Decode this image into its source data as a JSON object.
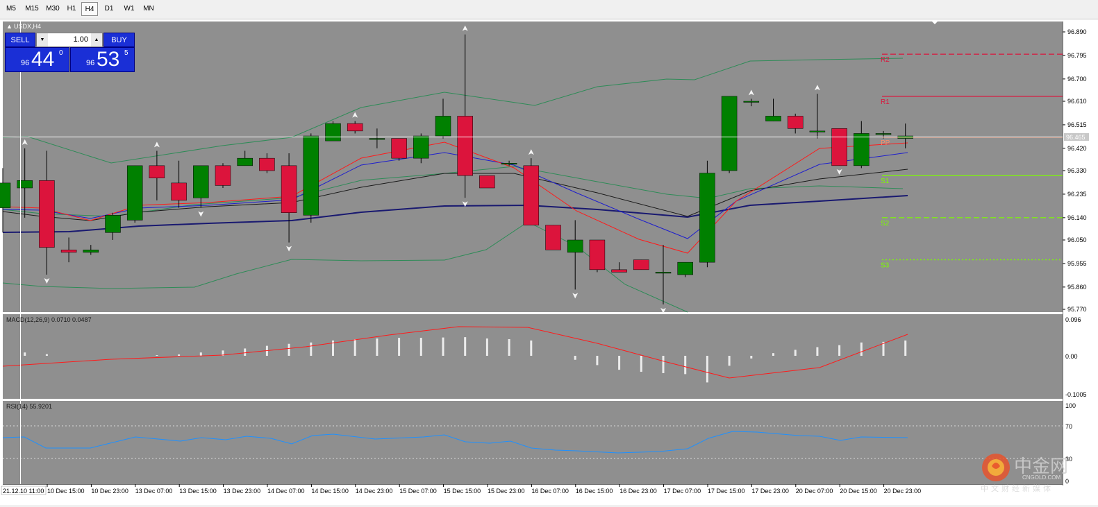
{
  "timeframes": [
    "M5",
    "M15",
    "M30",
    "H1",
    "H4",
    "D1",
    "W1",
    "MN"
  ],
  "active_timeframe": "H4",
  "symbol_label": "USDX,H4",
  "one_click": {
    "sell_label": "SELL",
    "buy_label": "BUY",
    "lot_value": "1.00",
    "sell_price": {
      "prefix": "96",
      "big": "44",
      "sup": "0"
    },
    "buy_price": {
      "prefix": "96",
      "big": "53",
      "sup": "5"
    }
  },
  "price_axis": [
    "96.890",
    "96.795",
    "96.700",
    "96.610",
    "96.515",
    "96.420",
    "96.330",
    "96.235",
    "96.140",
    "96.050",
    "95.955",
    "95.860",
    "95.770"
  ],
  "current_price_label": "96.465",
  "pivots": {
    "R2": "R2",
    "R1": "R1",
    "PP": "PP",
    "S1": "S1",
    "S2": "S2",
    "S3": "S3"
  },
  "macd": {
    "label": "MACD(12,26,9) 0.0710 0.0487",
    "axis": [
      "0.096",
      "0.00",
      "-0.1005"
    ]
  },
  "rsi": {
    "label": "RSI(14) 55.9201",
    "axis": [
      "100",
      "70",
      "30",
      "0"
    ]
  },
  "time_axis": [
    "10 Dec 15:00",
    "10 Dec 23:00",
    "13 Dec 07:00",
    "13 Dec 15:00",
    "13 Dec 23:00",
    "14 Dec 07:00",
    "14 Dec 15:00",
    "14 Dec 23:00",
    "15 Dec 07:00",
    "15 Dec 15:00",
    "15 Dec 23:00",
    "16 Dec 07:00",
    "16 Dec 15:00",
    "16 Dec 23:00",
    "17 Dec 07:00",
    "17 Dec 15:00",
    "17 Dec 23:00",
    "20 Dec 07:00",
    "20 Dec 15:00",
    "20 Dec 23:00"
  ],
  "crosshair_time": "21.12.10 11:00",
  "watermark": {
    "cn": "中金网",
    "en": "CNGOLD.COM",
    "sub": "中文财经新媒体"
  },
  "colors": {
    "bg": "#8f8f8f",
    "bull": "#008000",
    "bear": "#dc143c",
    "axis": "#ffffff"
  },
  "chart_data": {
    "type": "candlestick",
    "symbol": "USDX",
    "timeframe": "H4",
    "ylim": [
      95.77,
      96.89
    ],
    "candles": [
      {
        "o": 96.18,
        "h": 96.34,
        "l": 96.08,
        "c": 96.28
      },
      {
        "o": 96.26,
        "h": 96.42,
        "l": 96.14,
        "c": 96.29
      },
      {
        "o": 96.29,
        "h": 96.41,
        "l": 95.91,
        "c": 96.02
      },
      {
        "o": 96.01,
        "h": 96.06,
        "l": 95.96,
        "c": 96.0
      },
      {
        "o": 96.0,
        "h": 96.03,
        "l": 95.99,
        "c": 96.01
      },
      {
        "o": 96.08,
        "h": 96.16,
        "l": 96.05,
        "c": 96.15
      },
      {
        "o": 96.13,
        "h": 96.35,
        "l": 96.12,
        "c": 96.35
      },
      {
        "o": 96.35,
        "h": 96.41,
        "l": 96.21,
        "c": 96.3
      },
      {
        "o": 96.28,
        "h": 96.37,
        "l": 96.18,
        "c": 96.21
      },
      {
        "o": 96.22,
        "h": 96.35,
        "l": 96.18,
        "c": 96.35
      },
      {
        "o": 96.35,
        "h": 96.36,
        "l": 96.26,
        "c": 96.27
      },
      {
        "o": 96.35,
        "h": 96.41,
        "l": 96.35,
        "c": 96.38
      },
      {
        "o": 96.38,
        "h": 96.4,
        "l": 96.32,
        "c": 96.33
      },
      {
        "o": 96.35,
        "h": 96.4,
        "l": 96.04,
        "c": 96.16
      },
      {
        "o": 96.15,
        "h": 96.48,
        "l": 96.12,
        "c": 96.47
      },
      {
        "o": 96.45,
        "h": 96.53,
        "l": 96.45,
        "c": 96.52
      },
      {
        "o": 96.52,
        "h": 96.53,
        "l": 96.48,
        "c": 96.49
      },
      {
        "o": 96.46,
        "h": 96.5,
        "l": 96.42,
        "c": 96.46
      },
      {
        "o": 96.46,
        "h": 96.45,
        "l": 96.37,
        "c": 96.38
      },
      {
        "o": 96.38,
        "h": 96.48,
        "l": 96.36,
        "c": 96.47
      },
      {
        "o": 96.47,
        "h": 96.62,
        "l": 96.46,
        "c": 96.55
      },
      {
        "o": 96.55,
        "h": 96.88,
        "l": 96.22,
        "c": 96.31
      },
      {
        "o": 96.31,
        "h": 96.31,
        "l": 96.26,
        "c": 96.26
      },
      {
        "o": 96.36,
        "h": 96.37,
        "l": 96.35,
        "c": 96.36
      },
      {
        "o": 96.35,
        "h": 96.38,
        "l": 96.11,
        "c": 96.11
      },
      {
        "o": 96.11,
        "h": 96.11,
        "l": 96.01,
        "c": 96.01
      },
      {
        "o": 96.0,
        "h": 96.13,
        "l": 95.85,
        "c": 96.05
      },
      {
        "o": 96.05,
        "h": 96.05,
        "l": 95.92,
        "c": 95.93
      },
      {
        "o": 95.93,
        "h": 95.96,
        "l": 95.92,
        "c": 95.92
      },
      {
        "o": 95.97,
        "h": 95.97,
        "l": 95.93,
        "c": 95.93
      },
      {
        "o": 95.92,
        "h": 96.03,
        "l": 95.79,
        "c": 95.92
      },
      {
        "o": 95.91,
        "h": 95.96,
        "l": 95.9,
        "c": 95.96
      },
      {
        "o": 95.96,
        "h": 96.37,
        "l": 95.94,
        "c": 96.32
      },
      {
        "o": 96.33,
        "h": 96.63,
        "l": 96.32,
        "c": 96.63
      },
      {
        "o": 96.61,
        "h": 96.62,
        "l": 96.59,
        "c": 96.61
      },
      {
        "o": 96.53,
        "h": 96.62,
        "l": 96.53,
        "c": 96.55
      },
      {
        "o": 96.55,
        "h": 96.56,
        "l": 96.48,
        "c": 96.5
      },
      {
        "o": 96.49,
        "h": 96.64,
        "l": 96.46,
        "c": 96.49
      },
      {
        "o": 96.5,
        "h": 96.5,
        "l": 96.35,
        "c": 96.35
      },
      {
        "o": 96.35,
        "h": 96.53,
        "l": 96.34,
        "c": 96.48
      },
      {
        "o": 96.48,
        "h": 96.49,
        "l": 96.46,
        "c": 96.48
      },
      {
        "o": 96.46,
        "h": 96.52,
        "l": 96.42,
        "c": 96.47
      }
    ],
    "pivot_levels": {
      "R2": 96.8,
      "R1": 96.63,
      "PP": 96.465,
      "S1": 96.31,
      "S2": 96.14,
      "S3": 95.97
    },
    "current_price": 96.465,
    "macd_series": {
      "signal_line": "red",
      "histogram": "white"
    },
    "rsi_series": {
      "color": "#1e90ff",
      "levels": [
        70,
        30
      ]
    }
  }
}
